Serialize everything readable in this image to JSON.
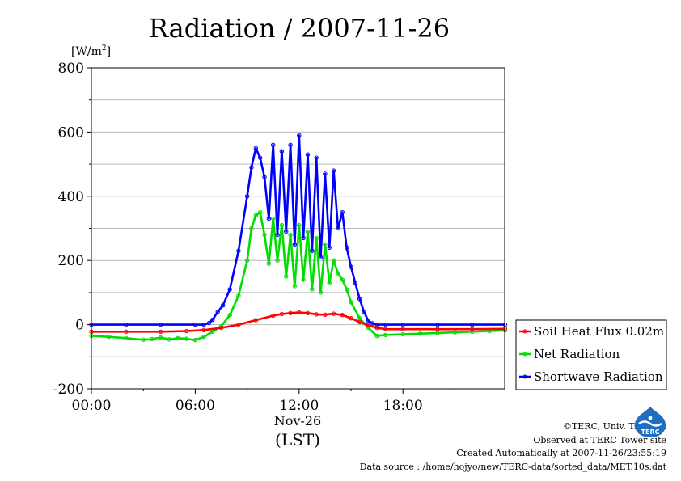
{
  "chart_data": {
    "type": "line",
    "title": "Radiation / 2007-11-26",
    "ylabel": "[W/m²]",
    "ylabel_unit": "W/m",
    "ylabel_exp": "2",
    "xlabel_date": "Nov-26",
    "xlabel": "(LST)",
    "ylim": [
      -200,
      800
    ],
    "xlim_hours": [
      0,
      23.9
    ],
    "y_ticks": [
      800,
      600,
      400,
      200,
      0,
      -200
    ],
    "y_tick_labels": [
      "800",
      "600",
      "400",
      "200",
      "0",
      "-200"
    ],
    "x_ticks": [
      0,
      6,
      12,
      18
    ],
    "x_tick_labels": [
      "00:00",
      "06:00",
      "12:00",
      "18:00"
    ],
    "grid": true,
    "legend_position": "right",
    "series": [
      {
        "name": "Soil Heat Flux 0.02m",
        "color": "#ff0000",
        "x": [
          0,
          2,
          4,
          5.5,
          6.5,
          7.5,
          8.5,
          9.5,
          10.5,
          11,
          11.5,
          12,
          12.5,
          13,
          13.5,
          14,
          14.5,
          15,
          15.5,
          16,
          16.5,
          17,
          18,
          20,
          22,
          23.9
        ],
        "values": [
          -22,
          -22,
          -22,
          -20,
          -17,
          -10,
          0,
          14,
          28,
          33,
          36,
          38,
          36,
          32,
          31,
          34,
          30,
          20,
          8,
          -2,
          -10,
          -14,
          -14,
          -14,
          -14,
          -13
        ]
      },
      {
        "name": "Net Radiation",
        "color": "#00dd00",
        "x": [
          0,
          1,
          2,
          3,
          3.5,
          4,
          4.5,
          5,
          5.5,
          6,
          6.5,
          7,
          7.5,
          8,
          8.5,
          9,
          9.25,
          9.5,
          9.75,
          10,
          10.25,
          10.5,
          10.75,
          11,
          11.25,
          11.5,
          11.75,
          12,
          12.25,
          12.5,
          12.75,
          13,
          13.25,
          13.5,
          13.75,
          14,
          14.25,
          14.5,
          14.75,
          15,
          15.5,
          16,
          16.5,
          17,
          18,
          19,
          20,
          21,
          22,
          23,
          23.9
        ],
        "values": [
          -35,
          -38,
          -42,
          -47,
          -45,
          -40,
          -46,
          -42,
          -44,
          -48,
          -38,
          -22,
          -5,
          30,
          90,
          200,
          300,
          340,
          350,
          280,
          190,
          330,
          200,
          310,
          150,
          280,
          120,
          310,
          140,
          290,
          110,
          270,
          100,
          250,
          130,
          200,
          160,
          140,
          110,
          70,
          20,
          -10,
          -35,
          -32,
          -30,
          -28,
          -26,
          -24,
          -22,
          -20,
          -18
        ]
      },
      {
        "name": "Shortwave Radiation",
        "color": "#0000ff",
        "x": [
          0,
          2,
          4,
          6,
          6.5,
          6.8,
          7,
          7.3,
          7.6,
          8,
          8.5,
          9,
          9.25,
          9.5,
          9.75,
          10,
          10.25,
          10.5,
          10.75,
          11,
          11.25,
          11.5,
          11.75,
          12,
          12.25,
          12.5,
          12.75,
          13,
          13.25,
          13.5,
          13.75,
          14,
          14.25,
          14.5,
          14.75,
          15,
          15.25,
          15.5,
          15.75,
          16,
          16.25,
          16.5,
          17,
          18,
          20,
          22,
          23.9
        ],
        "values": [
          0,
          0,
          0,
          0,
          0,
          5,
          15,
          40,
          60,
          110,
          230,
          400,
          490,
          550,
          520,
          460,
          330,
          560,
          280,
          540,
          290,
          560,
          250,
          590,
          270,
          530,
          230,
          520,
          210,
          470,
          240,
          480,
          300,
          350,
          240,
          180,
          130,
          80,
          40,
          12,
          4,
          0,
          0,
          0,
          0,
          0,
          0
        ]
      }
    ]
  },
  "footer": {
    "copyright": "©TERC, Univ. Tsukuba",
    "site": "Observed at TERC Tower site",
    "created": "Created Automatically at 2007-11-26/23:55:19",
    "source": "Data source : /home/hojyo/new/TERC-data/sorted_data/MET.10s.dat"
  },
  "logo": {
    "text": "TERC"
  }
}
